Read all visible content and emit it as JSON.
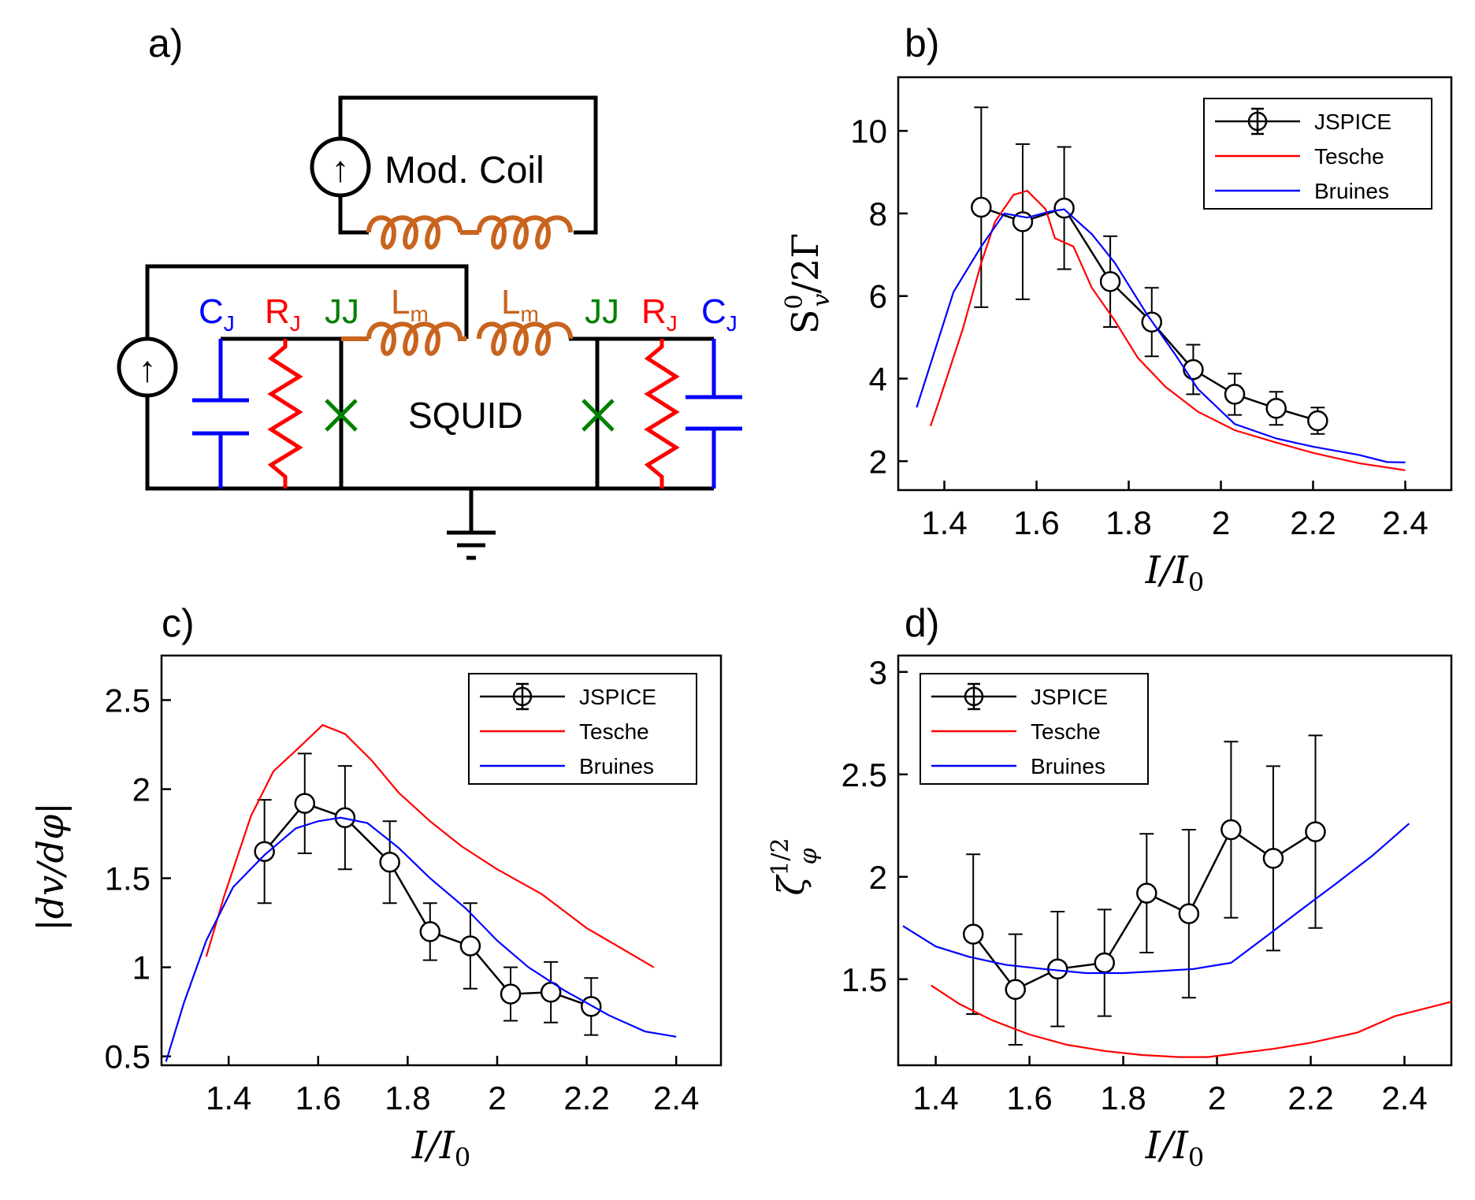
{
  "colors": {
    "jspice": "#000000",
    "tesche": "#ff0000",
    "bruines": "#0000ff",
    "inductor": "#c8641e",
    "cap": "#0000ff",
    "res": "#ff0000",
    "jj": "#008000"
  },
  "circuit": {
    "panel_label": "a)",
    "mod_coil_label": "Mod. Coil",
    "squid_label": "SQUID",
    "cj_left": "C",
    "cj_left_sub": "J",
    "rj_left": "R",
    "rj_left_sub": "J",
    "jj_left": "JJ",
    "lm_left": "L",
    "lm_left_sub": "m",
    "lm_right": "L",
    "lm_right_sub": "m",
    "jj_right": "JJ",
    "rj_right": "R",
    "rj_right_sub": "J",
    "cj_right": "C",
    "cj_right_sub": "J",
    "source_arrow": "↑",
    "icons": [
      "current-source-icon",
      "ground-icon",
      "josephson-junction-icon",
      "inductor-icon",
      "capacitor-icon",
      "resistor-icon"
    ]
  },
  "chart_data": [
    {
      "id": "b",
      "panel_label": "b)",
      "type": "line",
      "ylabel_main": "S",
      "ylabel_sup": "0",
      "ylabel_sub": "v",
      "ylabel_rest": "/2Γ",
      "xlabel": "I/I0",
      "xlim": [
        1.3,
        2.5
      ],
      "ylim": [
        1.3,
        11.3
      ],
      "xticks": [
        1.4,
        1.6,
        1.8,
        2,
        2.2,
        2.4
      ],
      "xtick_labels": [
        "1.4",
        "1.6",
        "1.8",
        "2",
        "2.2",
        "2.4"
      ],
      "yticks": [
        2,
        4,
        6,
        8,
        10
      ],
      "ytick_labels": [
        "2",
        "4",
        "6",
        "8",
        "10"
      ],
      "legend_position": "top-right",
      "legend_labels": [
        "JSPICE",
        "Tesche",
        "Bruines"
      ],
      "series": [
        {
          "name": "JSPICE",
          "x": [
            1.48,
            1.57,
            1.66,
            1.76,
            1.85,
            1.94,
            2.03,
            2.12,
            2.21
          ],
          "y": [
            8.15,
            7.8,
            8.13,
            6.35,
            5.37,
            4.22,
            3.62,
            3.28,
            2.98
          ],
          "err": [
            2.42,
            1.88,
            1.48,
            1.1,
            0.83,
            0.6,
            0.5,
            0.4,
            0.32
          ]
        },
        {
          "name": "Tesche",
          "x": [
            1.37,
            1.39,
            1.44,
            1.48,
            1.51,
            1.55,
            1.58,
            1.62,
            1.64,
            1.68,
            1.72,
            1.77,
            1.82,
            1.88,
            1.95,
            2.03,
            2.12,
            2.2,
            2.3,
            2.4
          ],
          "y": [
            2.85,
            3.5,
            5.2,
            6.8,
            7.8,
            8.45,
            8.55,
            8.1,
            7.4,
            7.2,
            6.2,
            5.4,
            4.5,
            3.8,
            3.2,
            2.75,
            2.45,
            2.2,
            1.95,
            1.78
          ]
        },
        {
          "name": "Bruines",
          "x": [
            1.34,
            1.42,
            1.48,
            1.53,
            1.58,
            1.63,
            1.66,
            1.72,
            1.77,
            1.84,
            1.9,
            1.95,
            2.03,
            2.12,
            2.2,
            2.3,
            2.36,
            2.4
          ],
          "y": [
            3.3,
            6.1,
            7.2,
            8.0,
            7.9,
            8.05,
            8.1,
            7.5,
            6.8,
            5.55,
            4.6,
            3.75,
            2.9,
            2.55,
            2.35,
            2.15,
            1.98,
            1.97
          ]
        }
      ]
    },
    {
      "id": "c",
      "panel_label": "c)",
      "type": "line",
      "ylabel": "|dv/dφ|",
      "xlabel": "I/I0",
      "xlim": [
        1.25,
        2.5
      ],
      "ylim": [
        0.45,
        2.75
      ],
      "xticks": [
        1.4,
        1.6,
        1.8,
        2,
        2.2,
        2.4
      ],
      "xtick_labels": [
        "1.4",
        "1.6",
        "1.8",
        "2",
        "2.2",
        "2.4"
      ],
      "yticks": [
        0.5,
        1,
        1.5,
        2,
        2.5
      ],
      "ytick_labels": [
        "0.5",
        "1",
        "1.5",
        "2",
        "2.5"
      ],
      "legend_position": "top-right",
      "legend_labels": [
        "JSPICE",
        "Tesche",
        "Bruines"
      ],
      "series": [
        {
          "name": "JSPICE",
          "x": [
            1.48,
            1.57,
            1.66,
            1.76,
            1.85,
            1.94,
            2.03,
            2.12,
            2.21
          ],
          "y": [
            1.65,
            1.92,
            1.84,
            1.59,
            1.2,
            1.12,
            0.85,
            0.86,
            0.78
          ],
          "err": [
            0.29,
            0.28,
            0.29,
            0.23,
            0.16,
            0.24,
            0.15,
            0.17,
            0.16
          ]
        },
        {
          "name": "Tesche",
          "x": [
            1.35,
            1.39,
            1.45,
            1.5,
            1.56,
            1.61,
            1.66,
            1.72,
            1.78,
            1.85,
            1.92,
            2.0,
            2.1,
            2.2,
            2.35
          ],
          "y": [
            1.06,
            1.4,
            1.85,
            2.1,
            2.24,
            2.36,
            2.31,
            2.16,
            1.98,
            1.82,
            1.68,
            1.55,
            1.41,
            1.22,
            1.0
          ]
        },
        {
          "name": "Bruines",
          "x": [
            1.26,
            1.3,
            1.35,
            1.41,
            1.48,
            1.55,
            1.6,
            1.65,
            1.71,
            1.78,
            1.85,
            1.93,
            2.0,
            2.07,
            2.15,
            2.25,
            2.33,
            2.4
          ],
          "y": [
            0.47,
            0.8,
            1.15,
            1.45,
            1.63,
            1.78,
            1.82,
            1.84,
            1.81,
            1.67,
            1.5,
            1.33,
            1.15,
            1.0,
            0.87,
            0.73,
            0.64,
            0.61
          ]
        }
      ]
    },
    {
      "id": "d",
      "panel_label": "d)",
      "type": "line",
      "ylabel_main": "ζ",
      "ylabel_sup": "1/2",
      "ylabel_sub": "φ",
      "xlabel": "I/I0",
      "xlim": [
        1.32,
        2.5
      ],
      "ylim": [
        1.08,
        3.08
      ],
      "xticks": [
        1.4,
        1.6,
        1.8,
        2,
        2.2,
        2.4
      ],
      "xtick_labels": [
        "1.4",
        "1.6",
        "1.8",
        "2",
        "2.2",
        "2.4"
      ],
      "yticks": [
        1.5,
        2,
        2.5,
        3
      ],
      "ytick_labels": [
        "1.5",
        "2",
        "2.5",
        "3"
      ],
      "legend_position": "top-left",
      "legend_labels": [
        "JSPICE",
        "Tesche",
        "Bruines"
      ],
      "series": [
        {
          "name": "JSPICE",
          "x": [
            1.48,
            1.57,
            1.66,
            1.76,
            1.85,
            1.94,
            2.03,
            2.12,
            2.21
          ],
          "y": [
            1.72,
            1.45,
            1.55,
            1.58,
            1.92,
            1.82,
            2.23,
            2.09,
            2.22
          ],
          "err": [
            0.39,
            0.27,
            0.28,
            0.26,
            0.29,
            0.41,
            0.43,
            0.45,
            0.47
          ]
        },
        {
          "name": "Tesche",
          "x": [
            1.39,
            1.45,
            1.52,
            1.6,
            1.68,
            1.76,
            1.84,
            1.92,
            1.98,
            2.05,
            2.12,
            2.2,
            2.3,
            2.38,
            2.5
          ],
          "y": [
            1.47,
            1.38,
            1.3,
            1.23,
            1.18,
            1.15,
            1.13,
            1.12,
            1.12,
            1.14,
            1.16,
            1.19,
            1.24,
            1.32,
            1.39
          ]
        },
        {
          "name": "Bruines",
          "x": [
            1.33,
            1.4,
            1.47,
            1.55,
            1.63,
            1.72,
            1.8,
            1.88,
            1.95,
            2.03,
            2.1,
            2.18,
            2.25,
            2.33,
            2.41
          ],
          "y": [
            1.76,
            1.66,
            1.61,
            1.57,
            1.55,
            1.53,
            1.53,
            1.54,
            1.55,
            1.58,
            1.7,
            1.84,
            1.96,
            2.1,
            2.26
          ]
        }
      ]
    }
  ]
}
